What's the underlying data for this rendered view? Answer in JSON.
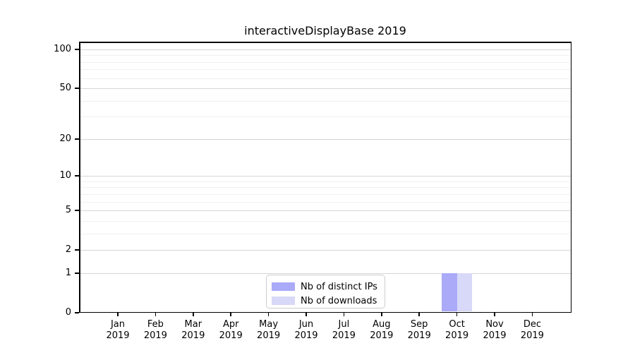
{
  "chart_data": {
    "type": "bar",
    "title": "interactiveDisplayBase 2019",
    "categories": [
      "Jan",
      "Feb",
      "Mar",
      "Apr",
      "May",
      "Jun",
      "Jul",
      "Aug",
      "Sep",
      "Oct",
      "Nov",
      "Dec"
    ],
    "category_year_label": "2019",
    "series": [
      {
        "name": "Nb of distinct IPs",
        "color": "#aaaaf8",
        "values": [
          0,
          0,
          0,
          0,
          0,
          0,
          0,
          0,
          0,
          1,
          0,
          0
        ]
      },
      {
        "name": "Nb of downloads",
        "color": "#d8d8f8",
        "values": [
          0,
          0,
          0,
          0,
          0,
          0,
          0,
          0,
          0,
          1,
          0,
          0
        ]
      }
    ],
    "y_axis": {
      "scale": "log1p",
      "tick_values": [
        0,
        1,
        2,
        5,
        10,
        20,
        50,
        100
      ],
      "minor_gridline_values": [
        3,
        4,
        6,
        7,
        8,
        9,
        30,
        40,
        60,
        70,
        80,
        90
      ],
      "axis_max": 113,
      "ylim": [
        0,
        113
      ]
    },
    "grid": {
      "enabled": true,
      "major_color": "#d6d6d6",
      "minor_color": "#f0f0f0"
    },
    "legend": {
      "position": "bottom-center",
      "border_color": "#cccccc",
      "background": "#ffffff"
    },
    "colors": {
      "axis": "#000000",
      "text": "#000000",
      "background": "#ffffff"
    }
  }
}
